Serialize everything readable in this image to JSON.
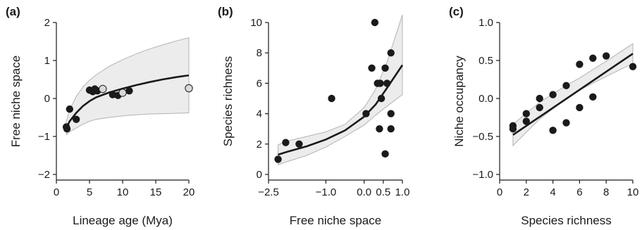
{
  "chart_data": [
    {
      "type": "scatter",
      "panel_label": "(a)",
      "xlabel": "Lineage age (Mya)",
      "ylabel": "Free niche space",
      "xlim": [
        0,
        20
      ],
      "ylim": [
        -2,
        2
      ],
      "xticks": [
        0,
        5,
        10,
        15,
        20
      ],
      "yticks": [
        -2,
        -1,
        0,
        1,
        2
      ],
      "points_filled": [
        [
          1.5,
          -0.75
        ],
        [
          1.6,
          -0.8
        ],
        [
          2,
          -0.28
        ],
        [
          3,
          -0.55
        ],
        [
          5,
          0.22
        ],
        [
          5.5,
          0.18
        ],
        [
          5.8,
          0.25
        ],
        [
          6.2,
          0.2
        ],
        [
          8.5,
          0.1
        ],
        [
          9.3,
          0.08
        ],
        [
          11,
          0.2
        ]
      ],
      "points_open": [
        [
          7,
          0.25
        ],
        [
          10,
          0.15
        ],
        [
          20,
          0.27
        ]
      ],
      "fit": [
        [
          1.5,
          -0.78
        ],
        [
          2,
          -0.6
        ],
        [
          3,
          -0.38
        ],
        [
          4,
          -0.2
        ],
        [
          5,
          -0.07
        ],
        [
          6,
          0.03
        ],
        [
          8,
          0.16
        ],
        [
          10,
          0.26
        ],
        [
          12,
          0.35
        ],
        [
          14,
          0.43
        ],
        [
          16,
          0.5
        ],
        [
          18,
          0.56
        ],
        [
          20,
          0.61
        ]
      ],
      "ci_upper": [
        [
          1.5,
          -0.6
        ],
        [
          2,
          -0.3
        ],
        [
          3,
          0.05
        ],
        [
          4,
          0.3
        ],
        [
          5,
          0.48
        ],
        [
          6,
          0.62
        ],
        [
          8,
          0.85
        ],
        [
          10,
          1.02
        ],
        [
          12,
          1.17
        ],
        [
          14,
          1.3
        ],
        [
          16,
          1.41
        ],
        [
          18,
          1.51
        ],
        [
          20,
          1.6
        ]
      ],
      "ci_lower": [
        [
          1.5,
          -0.95
        ],
        [
          2,
          -0.88
        ],
        [
          3,
          -0.78
        ],
        [
          4,
          -0.68
        ],
        [
          5,
          -0.6
        ],
        [
          6,
          -0.55
        ],
        [
          8,
          -0.5
        ],
        [
          10,
          -0.46
        ],
        [
          12,
          -0.43
        ],
        [
          14,
          -0.41
        ],
        [
          16,
          -0.4
        ],
        [
          18,
          -0.39
        ],
        [
          20,
          -0.38
        ]
      ],
      "grid": false
    },
    {
      "type": "scatter",
      "panel_label": "(b)",
      "xlabel": "Free niche space",
      "ylabel": "Species richness",
      "xlim": [
        -2.5,
        1.0
      ],
      "ylim": [
        0,
        10
      ],
      "xticks": [
        -2.5,
        -1.0,
        0.0,
        0.5,
        1.0
      ],
      "xtick_labels": [
        "−2.5",
        "−1.0",
        "0.0",
        "0.5",
        "1.0"
      ],
      "yticks": [
        0,
        2,
        4,
        6,
        8,
        10
      ],
      "points_filled": [
        [
          -2.25,
          1
        ],
        [
          -2.05,
          2.1
        ],
        [
          -1.7,
          2
        ],
        [
          -0.85,
          5
        ],
        [
          0.05,
          4
        ],
        [
          0.2,
          7
        ],
        [
          0.28,
          10
        ],
        [
          0.35,
          6
        ],
        [
          0.42,
          6
        ],
        [
          0.45,
          5
        ],
        [
          0.55,
          7
        ],
        [
          0.6,
          6
        ],
        [
          0.7,
          8
        ],
        [
          0.7,
          4
        ],
        [
          0.7,
          3
        ],
        [
          0.4,
          3
        ],
        [
          0.55,
          1.35
        ]
      ],
      "points_open": [],
      "fit": [
        [
          -2.25,
          1.3
        ],
        [
          -2,
          1.5
        ],
        [
          -1.5,
          1.85
        ],
        [
          -1,
          2.3
        ],
        [
          -0.5,
          2.9
        ],
        [
          0,
          3.8
        ],
        [
          0.3,
          4.6
        ],
        [
          0.6,
          5.7
        ],
        [
          1,
          7.2
        ]
      ],
      "ci_upper": [
        [
          -2.25,
          1.95
        ],
        [
          -2,
          2.2
        ],
        [
          -1.5,
          2.5
        ],
        [
          -1,
          2.8
        ],
        [
          -0.5,
          3.3
        ],
        [
          0,
          4.4
        ],
        [
          0.3,
          5.6
        ],
        [
          0.6,
          7.4
        ],
        [
          1,
          10.5
        ]
      ],
      "ci_lower": [
        [
          -2.25,
          0.65
        ],
        [
          -2,
          0.85
        ],
        [
          -1.5,
          1.25
        ],
        [
          -1,
          1.8
        ],
        [
          -0.5,
          2.5
        ],
        [
          0,
          3.25
        ],
        [
          0.3,
          3.9
        ],
        [
          0.6,
          4.5
        ],
        [
          1,
          5.25
        ]
      ],
      "grid": false
    },
    {
      "type": "scatter",
      "panel_label": "(c)",
      "xlabel": "Species richness",
      "ylabel": "Niche occupancy",
      "xlim": [
        0,
        10
      ],
      "ylim": [
        -1.0,
        1.0
      ],
      "xticks": [
        0,
        2,
        4,
        6,
        8,
        10
      ],
      "yticks": [
        -1.0,
        -0.5,
        0.0,
        0.5,
        1.0
      ],
      "ytick_labels": [
        "−1.0",
        "−0.5",
        "0.0",
        "0.5",
        "1.0"
      ],
      "points_filled": [
        [
          1,
          -0.36
        ],
        [
          1,
          -0.4
        ],
        [
          2,
          -0.2
        ],
        [
          2,
          -0.3
        ],
        [
          3,
          0.0
        ],
        [
          3,
          -0.12
        ],
        [
          4,
          0.05
        ],
        [
          4,
          -0.42
        ],
        [
          5,
          0.17
        ],
        [
          5,
          -0.32
        ],
        [
          6,
          0.45
        ],
        [
          6,
          -0.12
        ],
        [
          7,
          0.53
        ],
        [
          7,
          0.02
        ],
        [
          8,
          0.56
        ],
        [
          10,
          0.42
        ]
      ],
      "points_open": [],
      "fit": [
        [
          1,
          -0.48
        ],
        [
          10,
          0.59
        ]
      ],
      "ci_upper": [
        [
          1,
          -0.34
        ],
        [
          3,
          -0.05
        ],
        [
          5,
          0.17
        ],
        [
          6,
          0.27
        ],
        [
          8,
          0.49
        ],
        [
          10,
          0.72
        ]
      ],
      "ci_lower": [
        [
          1,
          -0.62
        ],
        [
          3,
          -0.27
        ],
        [
          5,
          0.0
        ],
        [
          6,
          0.11
        ],
        [
          8,
          0.29
        ],
        [
          10,
          0.46
        ]
      ],
      "grid": false
    }
  ]
}
